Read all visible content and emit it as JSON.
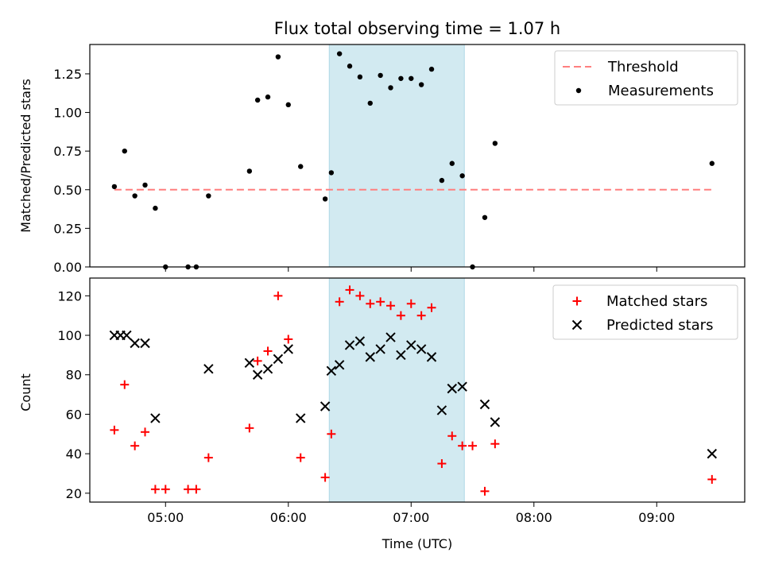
{
  "chart_data": [
    {
      "type": "scatter",
      "title": "Flux total observing time = 1.07 h",
      "xlabel": "",
      "ylabel": "Matched/Predicted stars",
      "ylim": [
        0,
        1.44
      ],
      "yticks": [
        "0.00",
        "0.25",
        "0.50",
        "0.75",
        "1.00",
        "1.25"
      ],
      "yticks_values": [
        0,
        0.25,
        0.5,
        0.75,
        1.0,
        1.25
      ],
      "shaded_region": {
        "x0": "06:20",
        "x1": "07:26",
        "color": "#add8e6"
      },
      "legend": {
        "position": "top-right",
        "entries": [
          "Threshold",
          "Measurements"
        ]
      },
      "threshold": {
        "name": "Threshold",
        "y": 0.5,
        "x0": "04:35",
        "x1": "09:27",
        "color": "#ff7f7f"
      },
      "series": [
        {
          "name": "Measurements",
          "color": "#000000",
          "points": [
            [
              "04:35",
              0.52
            ],
            [
              "04:40",
              0.75
            ],
            [
              "04:45",
              0.46
            ],
            [
              "04:50",
              0.53
            ],
            [
              "04:55",
              0.38
            ],
            [
              "05:00",
              0.0
            ],
            [
              "05:11",
              0.0
            ],
            [
              "05:15",
              0.0
            ],
            [
              "05:21",
              0.46
            ],
            [
              "05:41",
              0.62
            ],
            [
              "05:45",
              1.08
            ],
            [
              "05:50",
              1.1
            ],
            [
              "05:55",
              1.36
            ],
            [
              "06:00",
              1.05
            ],
            [
              "06:06",
              0.65
            ],
            [
              "06:18",
              0.44
            ],
            [
              "06:21",
              0.61
            ],
            [
              "06:25",
              1.38
            ],
            [
              "06:30",
              1.3
            ],
            [
              "06:35",
              1.23
            ],
            [
              "06:40",
              1.06
            ],
            [
              "06:45",
              1.24
            ],
            [
              "06:50",
              1.16
            ],
            [
              "06:55",
              1.22
            ],
            [
              "07:00",
              1.22
            ],
            [
              "07:05",
              1.18
            ],
            [
              "07:10",
              1.28
            ],
            [
              "07:15",
              0.56
            ],
            [
              "07:20",
              0.67
            ],
            [
              "07:25",
              0.59
            ],
            [
              "07:30",
              0.0
            ],
            [
              "07:36",
              0.32
            ],
            [
              "07:41",
              0.8
            ],
            [
              "09:27",
              0.67
            ]
          ]
        }
      ]
    },
    {
      "type": "scatter",
      "title": "",
      "xlabel": "Time (UTC)",
      "ylabel": "Count",
      "ylim": [
        15.5,
        129
      ],
      "yticks": [
        "20",
        "40",
        "60",
        "80",
        "100",
        "120"
      ],
      "yticks_values": [
        20,
        40,
        60,
        80,
        100,
        120
      ],
      "xlim": [
        "04:23",
        "09:43"
      ],
      "xticks": [
        "05:00",
        "06:00",
        "07:00",
        "08:00",
        "09:00"
      ],
      "shaded_region": {
        "x0": "06:20",
        "x1": "07:26",
        "color": "#add8e6"
      },
      "legend": {
        "position": "top-right",
        "entries": [
          "Matched stars",
          "Predicted stars"
        ]
      },
      "series": [
        {
          "name": "Matched stars",
          "marker": "+",
          "color": "#ff0000",
          "points": [
            [
              "04:35",
              52
            ],
            [
              "04:40",
              75
            ],
            [
              "04:45",
              44
            ],
            [
              "04:50",
              51
            ],
            [
              "04:55",
              22
            ],
            [
              "05:00",
              22
            ],
            [
              "05:11",
              22
            ],
            [
              "05:15",
              22
            ],
            [
              "05:21",
              38
            ],
            [
              "05:41",
              53
            ],
            [
              "05:45",
              87
            ],
            [
              "05:50",
              92
            ],
            [
              "05:55",
              120
            ],
            [
              "06:00",
              98
            ],
            [
              "06:06",
              38
            ],
            [
              "06:18",
              28
            ],
            [
              "06:21",
              50
            ],
            [
              "06:25",
              117
            ],
            [
              "06:30",
              123
            ],
            [
              "06:35",
              120
            ],
            [
              "06:40",
              116
            ],
            [
              "06:45",
              117
            ],
            [
              "06:50",
              115
            ],
            [
              "06:55",
              110
            ],
            [
              "07:00",
              116
            ],
            [
              "07:05",
              110
            ],
            [
              "07:10",
              114
            ],
            [
              "07:15",
              35
            ],
            [
              "07:20",
              49
            ],
            [
              "07:25",
              44
            ],
            [
              "07:30",
              44
            ],
            [
              "07:36",
              21
            ],
            [
              "07:41",
              45
            ],
            [
              "09:27",
              27
            ]
          ]
        },
        {
          "name": "Predicted stars",
          "marker": "x",
          "color": "#000000",
          "points": [
            [
              "04:35",
              100
            ],
            [
              "04:38",
              100
            ],
            [
              "04:41",
              100
            ],
            [
              "04:45",
              96
            ],
            [
              "04:50",
              96
            ],
            [
              "04:55",
              58
            ],
            [
              "05:21",
              83
            ],
            [
              "05:41",
              86
            ],
            [
              "05:45",
              80
            ],
            [
              "05:50",
              83
            ],
            [
              "05:55",
              88
            ],
            [
              "06:00",
              93
            ],
            [
              "06:06",
              58
            ],
            [
              "06:18",
              64
            ],
            [
              "06:21",
              82
            ],
            [
              "06:25",
              85
            ],
            [
              "06:30",
              95
            ],
            [
              "06:35",
              97
            ],
            [
              "06:40",
              89
            ],
            [
              "06:45",
              93
            ],
            [
              "06:50",
              99
            ],
            [
              "06:55",
              90
            ],
            [
              "07:00",
              95
            ],
            [
              "07:05",
              93
            ],
            [
              "07:10",
              89
            ],
            [
              "07:15",
              62
            ],
            [
              "07:20",
              73
            ],
            [
              "07:25",
              74
            ],
            [
              "07:36",
              65
            ],
            [
              "07:41",
              56
            ],
            [
              "09:27",
              40
            ]
          ]
        }
      ]
    }
  ]
}
